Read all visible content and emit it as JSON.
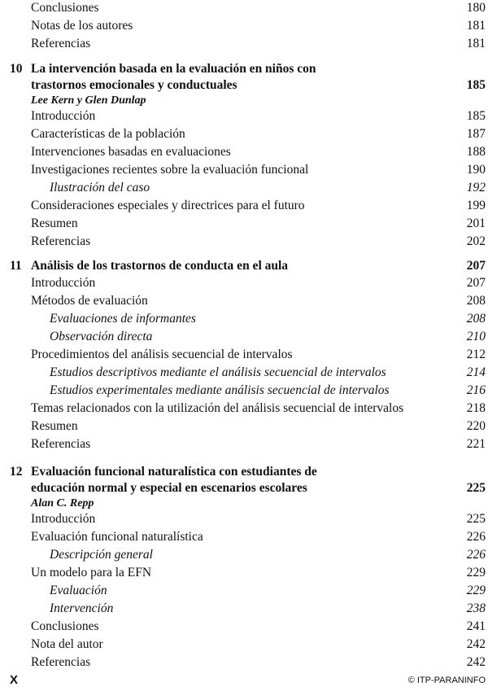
{
  "sections": [
    {
      "entries": [
        {
          "title": "Conclusiones",
          "page": "180"
        },
        {
          "title": "Notas de los autores",
          "page": "181"
        },
        {
          "title": "Referencias",
          "page": "181"
        }
      ]
    },
    {
      "chapter": {
        "number": "10",
        "title_lines": [
          "La intervención basada en la evaluación en niños con",
          "trastornos emocionales y conductuales"
        ],
        "page": "185",
        "author": "Lee Kern y Glen Dunlap"
      },
      "entries": [
        {
          "title": "Introducción",
          "page": "185"
        },
        {
          "title": "Características de la población",
          "page": "187"
        },
        {
          "title": "Intervenciones basadas en evaluaciones",
          "page": "188"
        },
        {
          "title": "Investigaciones recientes sobre la evaluación funcional",
          "page": "190"
        },
        {
          "title": "Ilustración del caso",
          "page": "192",
          "sub": true
        },
        {
          "title": "Consideraciones especiales y directrices para el futuro",
          "page": "199"
        },
        {
          "title": "Resumen",
          "page": "201"
        },
        {
          "title": "Referencias",
          "page": "202"
        }
      ]
    },
    {
      "chapter": {
        "number": "11",
        "title_lines": [
          "Análisis de los trastornos de conducta en el aula"
        ],
        "page": "207"
      },
      "entries": [
        {
          "title": "Introducción",
          "page": "207"
        },
        {
          "title": "Métodos de evaluación",
          "page": "208"
        },
        {
          "title": "Evaluaciones de informantes",
          "page": "208",
          "sub": true
        },
        {
          "title": "Observación directa",
          "page": "210",
          "sub": true
        },
        {
          "title": "Procedimientos del análisis secuencial de intervalos",
          "page": "212"
        },
        {
          "title": "Estudios descriptivos mediante el análisis secuencial de intervalos",
          "page": "214",
          "sub": true
        },
        {
          "title": "Estudios experimentales mediante análisis secuencial de intervalos",
          "page": "216",
          "sub": true
        },
        {
          "title": "Temas relacionados con la utilización del análisis secuencial de intervalos",
          "page": "218"
        },
        {
          "title": "Resumen",
          "page": "220"
        },
        {
          "title": "Referencias",
          "page": "221"
        }
      ]
    },
    {
      "chapter": {
        "number": "12",
        "title_lines": [
          "Evaluación funcional naturalística con estudiantes de",
          "educación normal y especial en escenarios escolares"
        ],
        "page": "225",
        "author": "Alan C. Repp"
      },
      "entries": [
        {
          "title": "Introducción",
          "page": "225"
        },
        {
          "title": "Evaluación funcional naturalística",
          "page": "226"
        },
        {
          "title": "Descripción general",
          "page": "226",
          "sub": true
        },
        {
          "title": "Un modelo para la EFN",
          "page": "229"
        },
        {
          "title": "Evaluación",
          "page": "229",
          "sub": true
        },
        {
          "title": "Intervención",
          "page": "238",
          "sub": true
        },
        {
          "title": "Conclusiones",
          "page": "241"
        },
        {
          "title": "Nota del autor",
          "page": "242"
        },
        {
          "title": "Referencias",
          "page": "242"
        }
      ]
    }
  ],
  "footer": {
    "page_number": "X",
    "publisher": "© ITP-PARANINFO"
  }
}
